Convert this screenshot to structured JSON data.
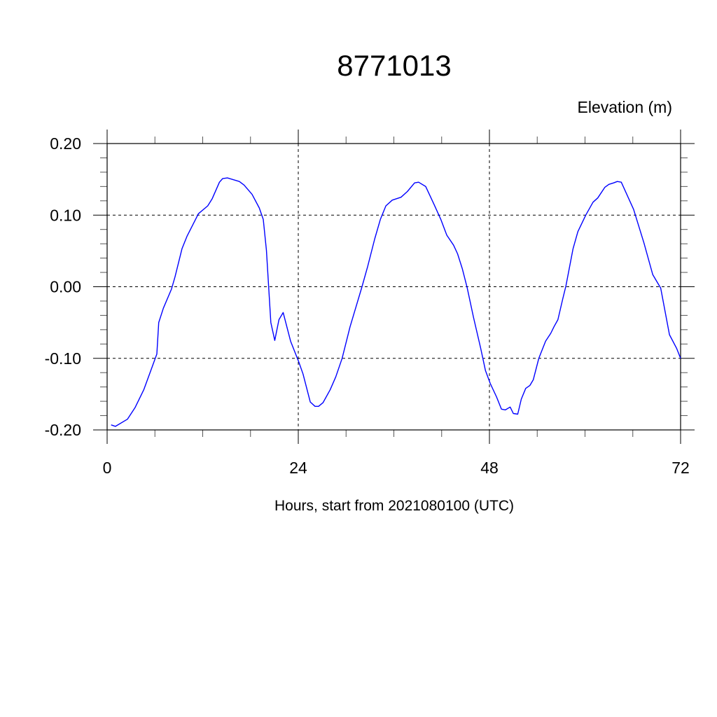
{
  "chart_data": {
    "type": "line",
    "title": "8771013",
    "ylabel": "Elevation (m)",
    "xlabel": "Hours, start from 2021080100 (UTC)",
    "xlim": [
      0,
      72
    ],
    "ylim": [
      -0.2,
      0.2
    ],
    "xticks": [
      0,
      24,
      48,
      72
    ],
    "xtick_labels": [
      "0",
      "24",
      "48",
      "72"
    ],
    "yticks": [
      -0.2,
      -0.1,
      0.0,
      0.1,
      0.2
    ],
    "ytick_labels": [
      "-0.20",
      "-0.10",
      "0.00",
      "0.10",
      "0.20"
    ],
    "x_minor_step": 6,
    "y_minor_step": 0.02,
    "grid": "dashed at major ticks",
    "line_color": "#0000ff",
    "series": [
      {
        "x": [
          0.5,
          1.05,
          2.55,
          3.5,
          4.6,
          5.45,
          6.24,
          6.48,
          7.06,
          8.09,
          8.53,
          9.4,
          10.05,
          11.46,
          12.63,
          13.2,
          14.1,
          14.5,
          15.1,
          16.6,
          17.2,
          18.2,
          19.1,
          19.6,
          20.0,
          20.55,
          21.05,
          21.57,
          22.1,
          23.03,
          24.06,
          24.6,
          25.5,
          26.1,
          26.55,
          27.1,
          28.0,
          28.7,
          29.5,
          30.5,
          31.97,
          32.7,
          33.6,
          34.3,
          35.0,
          35.8,
          36.9,
          37.7,
          38.6,
          39.1,
          40.0,
          41.05,
          41.9,
          42.65,
          43.5,
          44.0,
          44.6,
          45.2,
          46.0,
          46.9,
          47.5,
          48.1,
          48.9,
          49.5,
          50.0,
          50.6,
          51.0,
          51.55,
          52.0,
          52.55,
          53.07,
          53.5,
          54.2,
          55.05,
          55.7,
          56.1,
          56.6,
          57.2,
          57.6,
          58.5,
          59.1,
          60.1,
          61.0,
          61.6,
          62.5,
          63.0,
          63.6,
          64.05,
          64.55,
          66.1,
          67.4,
          68.5,
          69.5,
          70.6,
          71.5,
          72.0
        ],
        "y": [
          -0.193,
          -0.195,
          -0.185,
          -0.169,
          -0.144,
          -0.118,
          -0.094,
          -0.05,
          -0.03,
          -0.003,
          0.014,
          0.053,
          0.071,
          0.102,
          0.113,
          0.123,
          0.146,
          0.151,
          0.152,
          0.147,
          0.142,
          0.129,
          0.11,
          0.094,
          0.051,
          -0.05,
          -0.075,
          -0.046,
          -0.036,
          -0.076,
          -0.105,
          -0.122,
          -0.161,
          -0.167,
          -0.167,
          -0.162,
          -0.144,
          -0.126,
          -0.1,
          -0.056,
          -0.001,
          0.028,
          0.067,
          0.094,
          0.113,
          0.121,
          0.125,
          0.133,
          0.145,
          0.146,
          0.14,
          0.115,
          0.094,
          0.072,
          0.058,
          0.046,
          0.025,
          -0.001,
          -0.043,
          -0.086,
          -0.117,
          -0.135,
          -0.154,
          -0.171,
          -0.172,
          -0.168,
          -0.177,
          -0.178,
          -0.157,
          -0.142,
          -0.138,
          -0.13,
          -0.1,
          -0.076,
          -0.065,
          -0.056,
          -0.046,
          -0.017,
          0.001,
          0.053,
          0.077,
          0.1,
          0.118,
          0.124,
          0.139,
          0.143,
          0.145,
          0.147,
          0.146,
          0.108,
          0.061,
          0.017,
          -0.002,
          -0.067,
          -0.086,
          -0.1
        ]
      }
    ]
  }
}
